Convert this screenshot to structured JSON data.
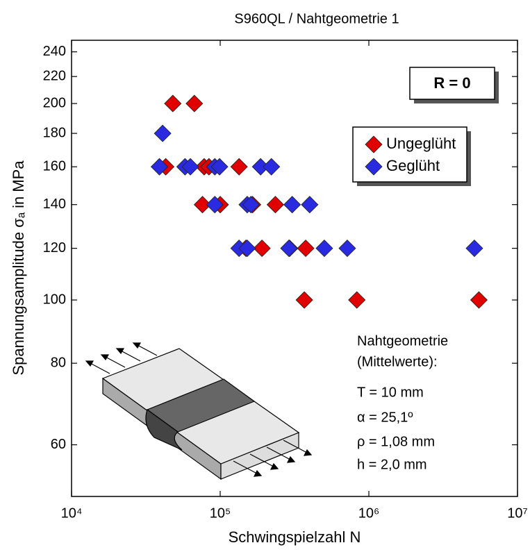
{
  "chart_data": {
    "type": "scatter",
    "title": "S960QL  /  Nahtgeometrie 1",
    "xlabel": "Schwingspielzahl N",
    "ylabel": "Spannungsamplitude σₐ in MPa",
    "xscale": "log",
    "yscale": "log",
    "xlim": [
      10000,
      10000000
    ],
    "ylim": [
      50,
      250
    ],
    "xticks": [
      {
        "value": 10000,
        "label": "10⁴"
      },
      {
        "value": 100000,
        "label": "10⁵"
      },
      {
        "value": 1000000,
        "label": "10⁶"
      },
      {
        "value": 10000000,
        "label": "10⁷"
      }
    ],
    "yticks": [
      60,
      80,
      100,
      120,
      140,
      160,
      180,
      200,
      220,
      240
    ],
    "legend": "upper right",
    "series": [
      {
        "name": "Ungeglüht",
        "color": "#e00000",
        "x": [
          48000,
          67000,
          43000,
          78000,
          84000,
          134000,
          76000,
          100000,
          165000,
          235000,
          149000,
          191000,
          293000,
          376000,
          368000,
          830000,
          5500000
        ],
        "values": [
          200,
          200,
          160,
          160,
          160,
          160,
          140,
          140,
          140,
          140,
          120,
          120,
          120,
          120,
          100,
          100,
          100
        ]
      },
      {
        "name": "Geglüht",
        "color": "#2a2ae0",
        "x": [
          41000,
          39000,
          58000,
          63000,
          92000,
          99000,
          187000,
          221000,
          92000,
          152000,
          161000,
          305000,
          400000,
          134000,
          152000,
          290000,
          502000,
          716000,
          5130000
        ],
        "values": [
          180,
          160,
          160,
          160,
          160,
          160,
          160,
          160,
          140,
          140,
          140,
          140,
          140,
          120,
          120,
          120,
          120,
          120,
          120
        ]
      }
    ],
    "annotations": [
      "R = 0",
      "Nahtgeometrie",
      "(Mittelwerte):",
      "T = 10 mm",
      "α = 25,1º",
      "ρ = 1,08 mm",
      "h = 2,0 mm"
    ]
  }
}
